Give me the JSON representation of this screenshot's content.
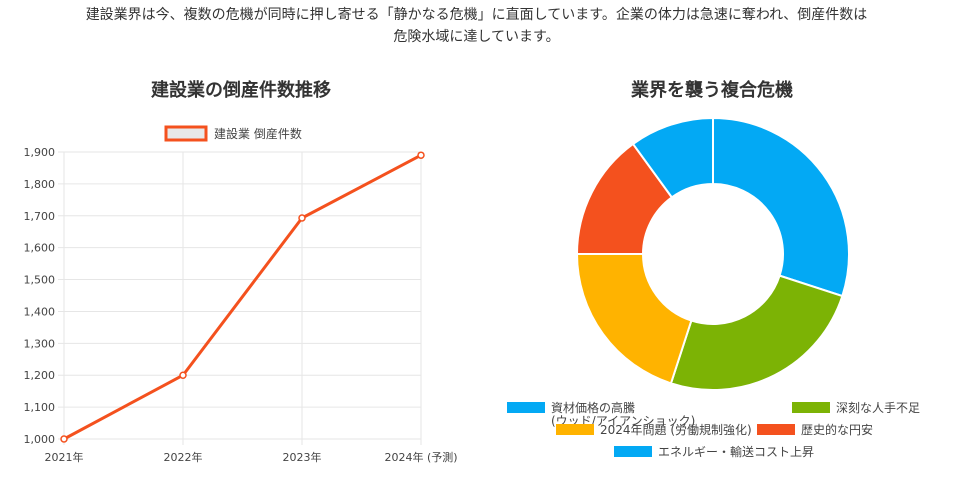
{
  "intro": {
    "line1": "建設業界は今、複数の危機が同時に押し寄せる「静かなる危機」に直面しています。企業の体力は急速に奪われ、倒産件数は",
    "line2": "危険水域に達しています。"
  },
  "colors": {
    "line": "#f4511e",
    "blue": "#03a9f4",
    "green": "#7cb305",
    "yellow": "#ffb300",
    "orange": "#f4511e",
    "grid": "#e6e6e6"
  },
  "chart_data": [
    {
      "type": "line",
      "title": "建設業の倒産件数推移",
      "legend_position": "top",
      "grid": true,
      "categories": [
        "2021年",
        "2022年",
        "2023年",
        "2024年 (予測)"
      ],
      "series": [
        {
          "name": "建設業 倒産件数",
          "values": [
            1000,
            1200,
            1693,
            1890
          ]
        }
      ],
      "ylim": [
        1000,
        1900
      ],
      "yticks": [
        1000,
        1100,
        1200,
        1300,
        1400,
        1500,
        1600,
        1700,
        1800,
        1900
      ],
      "ytick_labels": [
        "1,000",
        "1,100",
        "1,200",
        "1,300",
        "1,400",
        "1,500",
        "1,600",
        "1,700",
        "1,800",
        "1,900"
      ]
    },
    {
      "type": "pie",
      "title": "業界を襲う複合危機",
      "legend_position": "bottom",
      "labels": [
        "資材価格の高騰\n(ウッド/アイアンショック)",
        "深刻な人手不足",
        "2024年問題 (労働規制強化)",
        "歴史的な円安",
        "エネルギー・輸送コスト上昇"
      ],
      "values": [
        30,
        25,
        20,
        15,
        10
      ],
      "colors": [
        "#03a9f4",
        "#7cb305",
        "#ffb300",
        "#f4511e",
        "#03a9f4"
      ]
    }
  ]
}
